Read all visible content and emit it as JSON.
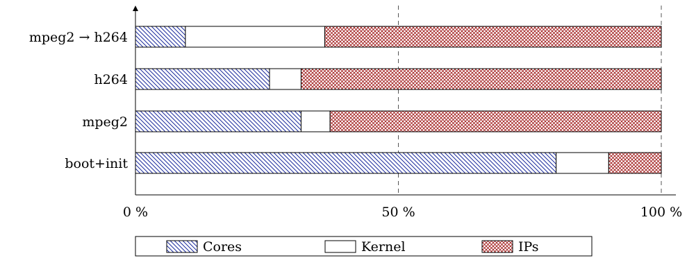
{
  "chart_data": {
    "type": "bar",
    "orientation": "horizontal",
    "stacked": true,
    "normalized": true,
    "categories": [
      "mpeg2 → h264",
      "h264",
      "mpeg2",
      "boot+init"
    ],
    "series": [
      {
        "name": "Cores",
        "values": [
          9.5,
          25.5,
          31.5,
          80.0
        ],
        "color": "#1a2a9c",
        "pattern": "diagonal-hatch"
      },
      {
        "name": "Kernel",
        "values": [
          26.5,
          6.0,
          5.5,
          10.0
        ],
        "color": "#000000",
        "pattern": "none"
      },
      {
        "name": "IPs",
        "values": [
          64.0,
          68.5,
          63.0,
          10.0
        ],
        "color": "#a01818",
        "pattern": "crosshatch"
      }
    ],
    "xlim": [
      0,
      100
    ],
    "x_ticks": [
      {
        "value": 0,
        "label": "0 %"
      },
      {
        "value": 50,
        "label": "50 %"
      },
      {
        "value": 100,
        "label": "100 %"
      }
    ],
    "grid": "dashed vertical lines at 50 and 100",
    "legend_position": "bottom",
    "title": "",
    "xlabel": "",
    "ylabel": ""
  }
}
